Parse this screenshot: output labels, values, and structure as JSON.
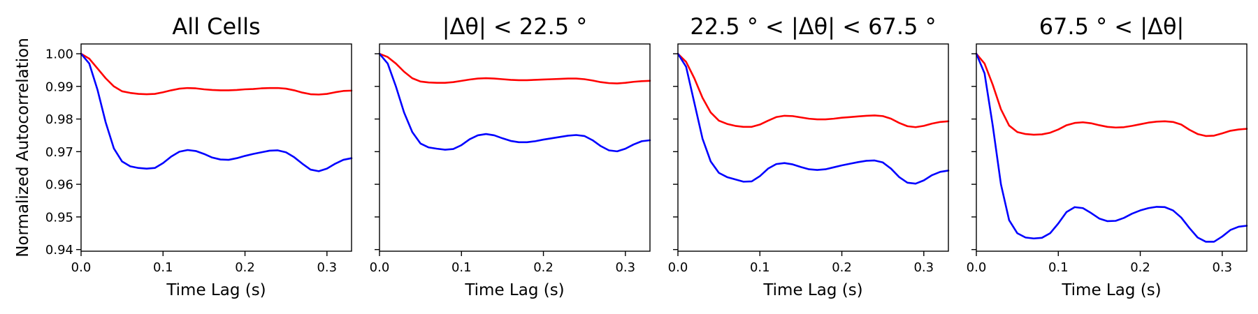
{
  "figure": {
    "ylabel": "Normalized Autocorrelation",
    "sharey": true
  },
  "chart_data": [
    {
      "type": "line",
      "title": "All Cells",
      "xlabel": "Time Lag (s)",
      "ylabel": "Normalized Autocorrelation",
      "xlim": [
        0,
        0.33
      ],
      "ylim": [
        0.9395,
        1.003
      ],
      "xticks": [
        "0.0",
        "0.1",
        "0.2",
        "0.3"
      ],
      "yticks": [
        "0.94",
        "0.95",
        "0.96",
        "0.97",
        "0.98",
        "0.99",
        "1.00"
      ],
      "grid": false,
      "series": [
        {
          "color": "#ff0000",
          "x": [
            0,
            0.01,
            0.02,
            0.03,
            0.04,
            0.05,
            0.06,
            0.07,
            0.08,
            0.09,
            0.1,
            0.11,
            0.12,
            0.13,
            0.14,
            0.15,
            0.16,
            0.17,
            0.18,
            0.19,
            0.2,
            0.21,
            0.22,
            0.23,
            0.24,
            0.25,
            0.26,
            0.27,
            0.28,
            0.29,
            0.3,
            0.31,
            0.32,
            0.33
          ],
          "y": [
            1.0,
            0.9985,
            0.9955,
            0.9925,
            0.99,
            0.9885,
            0.988,
            0.9877,
            0.9876,
            0.9877,
            0.9882,
            0.9888,
            0.9893,
            0.9895,
            0.9894,
            0.9891,
            0.9889,
            0.9888,
            0.9888,
            0.9889,
            0.9891,
            0.9892,
            0.9894,
            0.9895,
            0.9895,
            0.9893,
            0.9888,
            0.9881,
            0.9876,
            0.9875,
            0.9877,
            0.9882,
            0.9886,
            0.9887
          ]
        },
        {
          "color": "#0000ff",
          "x": [
            0,
            0.01,
            0.02,
            0.03,
            0.04,
            0.05,
            0.06,
            0.07,
            0.08,
            0.09,
            0.1,
            0.11,
            0.12,
            0.13,
            0.14,
            0.15,
            0.16,
            0.17,
            0.18,
            0.19,
            0.2,
            0.21,
            0.22,
            0.23,
            0.24,
            0.25,
            0.26,
            0.27,
            0.28,
            0.29,
            0.3,
            0.31,
            0.32,
            0.33
          ],
          "y": [
            1.0,
            0.997,
            0.989,
            0.979,
            0.971,
            0.967,
            0.9655,
            0.965,
            0.9648,
            0.965,
            0.9665,
            0.9685,
            0.97,
            0.9705,
            0.9702,
            0.9693,
            0.9682,
            0.9676,
            0.9675,
            0.968,
            0.9687,
            0.9693,
            0.9698,
            0.9703,
            0.9704,
            0.9698,
            0.9683,
            0.9663,
            0.9645,
            0.964,
            0.9648,
            0.9663,
            0.9675,
            0.968
          ]
        }
      ]
    },
    {
      "type": "line",
      "title": "|Δθ| < 22.5 °",
      "xlabel": "Time Lag (s)",
      "ylabel": "",
      "xlim": [
        0,
        0.33
      ],
      "ylim": [
        0.9395,
        1.003
      ],
      "xticks": [
        "0.0",
        "0.1",
        "0.2",
        "0.3"
      ],
      "yticks": [],
      "grid": false,
      "series": [
        {
          "color": "#ff0000",
          "x": [
            0,
            0.01,
            0.02,
            0.03,
            0.04,
            0.05,
            0.06,
            0.07,
            0.08,
            0.09,
            0.1,
            0.11,
            0.12,
            0.13,
            0.14,
            0.15,
            0.16,
            0.17,
            0.18,
            0.19,
            0.2,
            0.21,
            0.22,
            0.23,
            0.24,
            0.25,
            0.26,
            0.27,
            0.28,
            0.29,
            0.3,
            0.31,
            0.32,
            0.33
          ],
          "y": [
            1.0,
            0.999,
            0.997,
            0.9945,
            0.9925,
            0.9915,
            0.9912,
            0.9911,
            0.9911,
            0.9913,
            0.9917,
            0.9921,
            0.9924,
            0.9925,
            0.9924,
            0.9922,
            0.992,
            0.9919,
            0.9919,
            0.992,
            0.9921,
            0.9922,
            0.9923,
            0.9924,
            0.9924,
            0.9922,
            0.9918,
            0.9913,
            0.991,
            0.9909,
            0.9911,
            0.9914,
            0.9916,
            0.9917
          ]
        },
        {
          "color": "#0000ff",
          "x": [
            0,
            0.01,
            0.02,
            0.03,
            0.04,
            0.05,
            0.06,
            0.07,
            0.08,
            0.09,
            0.1,
            0.11,
            0.12,
            0.13,
            0.14,
            0.15,
            0.16,
            0.17,
            0.18,
            0.19,
            0.2,
            0.21,
            0.22,
            0.23,
            0.24,
            0.25,
            0.26,
            0.27,
            0.28,
            0.29,
            0.3,
            0.31,
            0.32,
            0.33
          ],
          "y": [
            1.0,
            0.997,
            0.99,
            0.982,
            0.976,
            0.9725,
            0.9713,
            0.9709,
            0.9706,
            0.9708,
            0.972,
            0.9738,
            0.975,
            0.9754,
            0.975,
            0.9741,
            0.9733,
            0.9729,
            0.9729,
            0.9732,
            0.9737,
            0.9741,
            0.9745,
            0.9749,
            0.9751,
            0.9748,
            0.9735,
            0.9717,
            0.9704,
            0.9701,
            0.9709,
            0.9722,
            0.9732,
            0.9735
          ]
        }
      ]
    },
    {
      "type": "line",
      "title": "22.5 ° < |Δθ| < 67.5 °",
      "xlabel": "Time Lag (s)",
      "ylabel": "",
      "xlim": [
        0,
        0.33
      ],
      "ylim": [
        0.9395,
        1.003
      ],
      "xticks": [
        "0.0",
        "0.1",
        "0.2",
        "0.3"
      ],
      "yticks": [],
      "grid": false,
      "series": [
        {
          "color": "#ff0000",
          "x": [
            0,
            0.01,
            0.02,
            0.03,
            0.04,
            0.05,
            0.06,
            0.07,
            0.08,
            0.09,
            0.1,
            0.11,
            0.12,
            0.13,
            0.14,
            0.15,
            0.16,
            0.17,
            0.18,
            0.19,
            0.2,
            0.21,
            0.22,
            0.23,
            0.24,
            0.25,
            0.26,
            0.27,
            0.28,
            0.29,
            0.3,
            0.31,
            0.32,
            0.33
          ],
          "y": [
            1.0,
            0.9975,
            0.9925,
            0.9865,
            0.982,
            0.9795,
            0.9785,
            0.9779,
            0.9776,
            0.9776,
            0.9783,
            0.9795,
            0.9806,
            0.981,
            0.9809,
            0.9805,
            0.9801,
            0.9799,
            0.9799,
            0.9801,
            0.9804,
            0.9806,
            0.9808,
            0.981,
            0.9811,
            0.9809,
            0.9801,
            0.9788,
            0.9778,
            0.9775,
            0.9779,
            0.9786,
            0.9791,
            0.9793
          ]
        },
        {
          "color": "#0000ff",
          "x": [
            0,
            0.01,
            0.02,
            0.03,
            0.04,
            0.05,
            0.06,
            0.07,
            0.08,
            0.09,
            0.1,
            0.11,
            0.12,
            0.13,
            0.14,
            0.15,
            0.16,
            0.17,
            0.18,
            0.19,
            0.2,
            0.21,
            0.22,
            0.23,
            0.24,
            0.25,
            0.26,
            0.27,
            0.28,
            0.29,
            0.3,
            0.31,
            0.32,
            0.33
          ],
          "y": [
            1.0,
            0.996,
            0.985,
            0.974,
            0.967,
            0.9635,
            0.9622,
            0.9615,
            0.9608,
            0.9609,
            0.9625,
            0.9648,
            0.9662,
            0.9665,
            0.9661,
            0.9653,
            0.9646,
            0.9644,
            0.9646,
            0.9652,
            0.9658,
            0.9663,
            0.9668,
            0.9672,
            0.9673,
            0.9667,
            0.9648,
            0.9622,
            0.9605,
            0.9602,
            0.9612,
            0.9628,
            0.9638,
            0.9642
          ]
        }
      ]
    },
    {
      "type": "line",
      "title": "67.5 ° < |Δθ|",
      "xlabel": "Time Lag (s)",
      "ylabel": "",
      "xlim": [
        0,
        0.33
      ],
      "ylim": [
        0.9395,
        1.003
      ],
      "xticks": [
        "0.0",
        "0.1",
        "0.2",
        "0.3"
      ],
      "yticks": [],
      "grid": false,
      "series": [
        {
          "color": "#ff0000",
          "x": [
            0,
            0.01,
            0.02,
            0.03,
            0.04,
            0.05,
            0.06,
            0.07,
            0.08,
            0.09,
            0.1,
            0.11,
            0.12,
            0.13,
            0.14,
            0.15,
            0.16,
            0.17,
            0.18,
            0.19,
            0.2,
            0.21,
            0.22,
            0.23,
            0.24,
            0.25,
            0.26,
            0.27,
            0.28,
            0.29,
            0.3,
            0.31,
            0.32,
            0.33
          ],
          "y": [
            1.0,
            0.997,
            0.9905,
            0.983,
            0.978,
            0.976,
            0.9754,
            0.9752,
            0.9753,
            0.9758,
            0.9768,
            0.9781,
            0.9788,
            0.979,
            0.9787,
            0.9781,
            0.9776,
            0.9774,
            0.9775,
            0.9779,
            0.9784,
            0.9789,
            0.9792,
            0.9793,
            0.9791,
            0.9783,
            0.9767,
            0.9754,
            0.9748,
            0.9749,
            0.9756,
            0.9764,
            0.9768,
            0.977
          ]
        },
        {
          "color": "#0000ff",
          "x": [
            0,
            0.01,
            0.02,
            0.03,
            0.04,
            0.05,
            0.06,
            0.07,
            0.08,
            0.09,
            0.1,
            0.11,
            0.12,
            0.13,
            0.14,
            0.15,
            0.16,
            0.17,
            0.18,
            0.19,
            0.2,
            0.21,
            0.22,
            0.23,
            0.24,
            0.25,
            0.26,
            0.27,
            0.28,
            0.29,
            0.3,
            0.31,
            0.32,
            0.33
          ],
          "y": [
            1.0,
            0.994,
            0.978,
            0.96,
            0.949,
            0.945,
            0.9437,
            0.9434,
            0.9436,
            0.945,
            0.948,
            0.9515,
            0.953,
            0.9527,
            0.9512,
            0.9495,
            0.9487,
            0.9488,
            0.9497,
            0.951,
            0.952,
            0.9527,
            0.9531,
            0.953,
            0.952,
            0.9498,
            0.9466,
            0.9437,
            0.9424,
            0.9424,
            0.944,
            0.946,
            0.947,
            0.9473
          ]
        }
      ]
    }
  ]
}
